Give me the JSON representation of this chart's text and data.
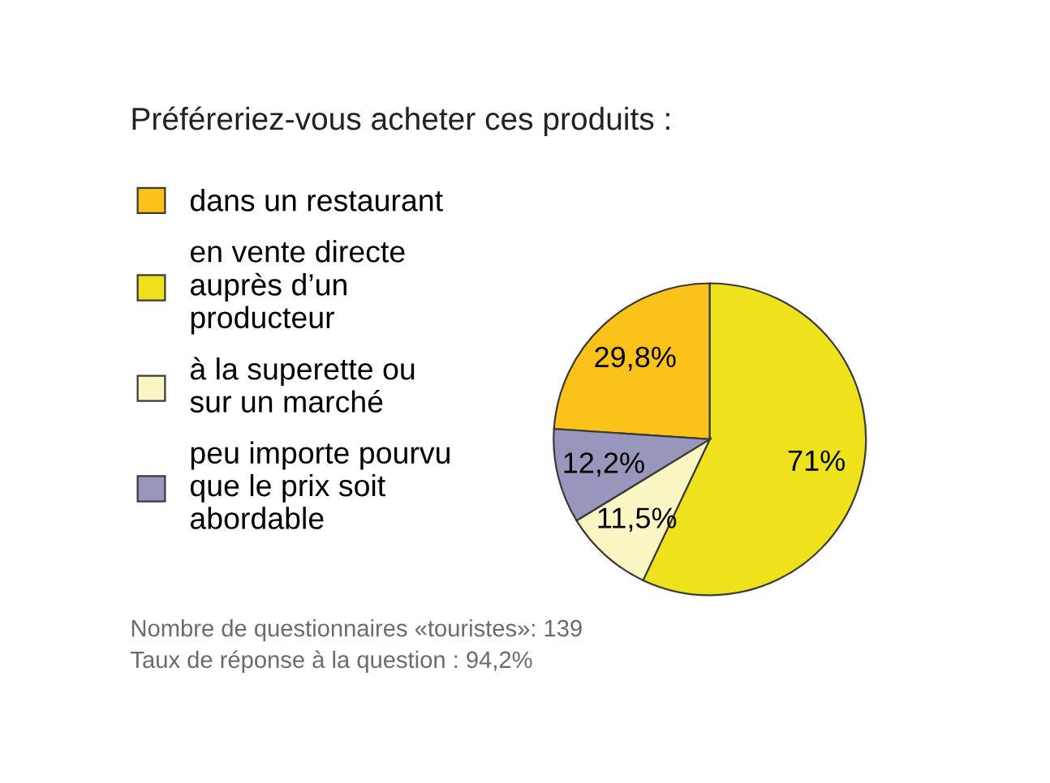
{
  "chart_data": {
    "type": "pie",
    "title": "Préféreriez-vous acheter ces produits :",
    "categories": [
      "dans un restaurant",
      "en vente directe\nauprès d’un\nproducteur",
      "à la superette ou\nsur un marché",
      "peu importe pourvu\nque le prix soit\nabordable"
    ],
    "values": [
      29.8,
      71,
      11.5,
      12.2
    ],
    "value_labels": [
      "29,8%",
      "71%",
      "11,5%",
      "12,2%"
    ],
    "colors": [
      "#fbc21a",
      "#ede21b",
      "#faf6c4",
      "#9896bd"
    ],
    "legend": "left",
    "annotations": [
      "Nombre de questionnaires «touristes»: 139",
      "Taux de réponse à la question : 94,2%"
    ]
  }
}
